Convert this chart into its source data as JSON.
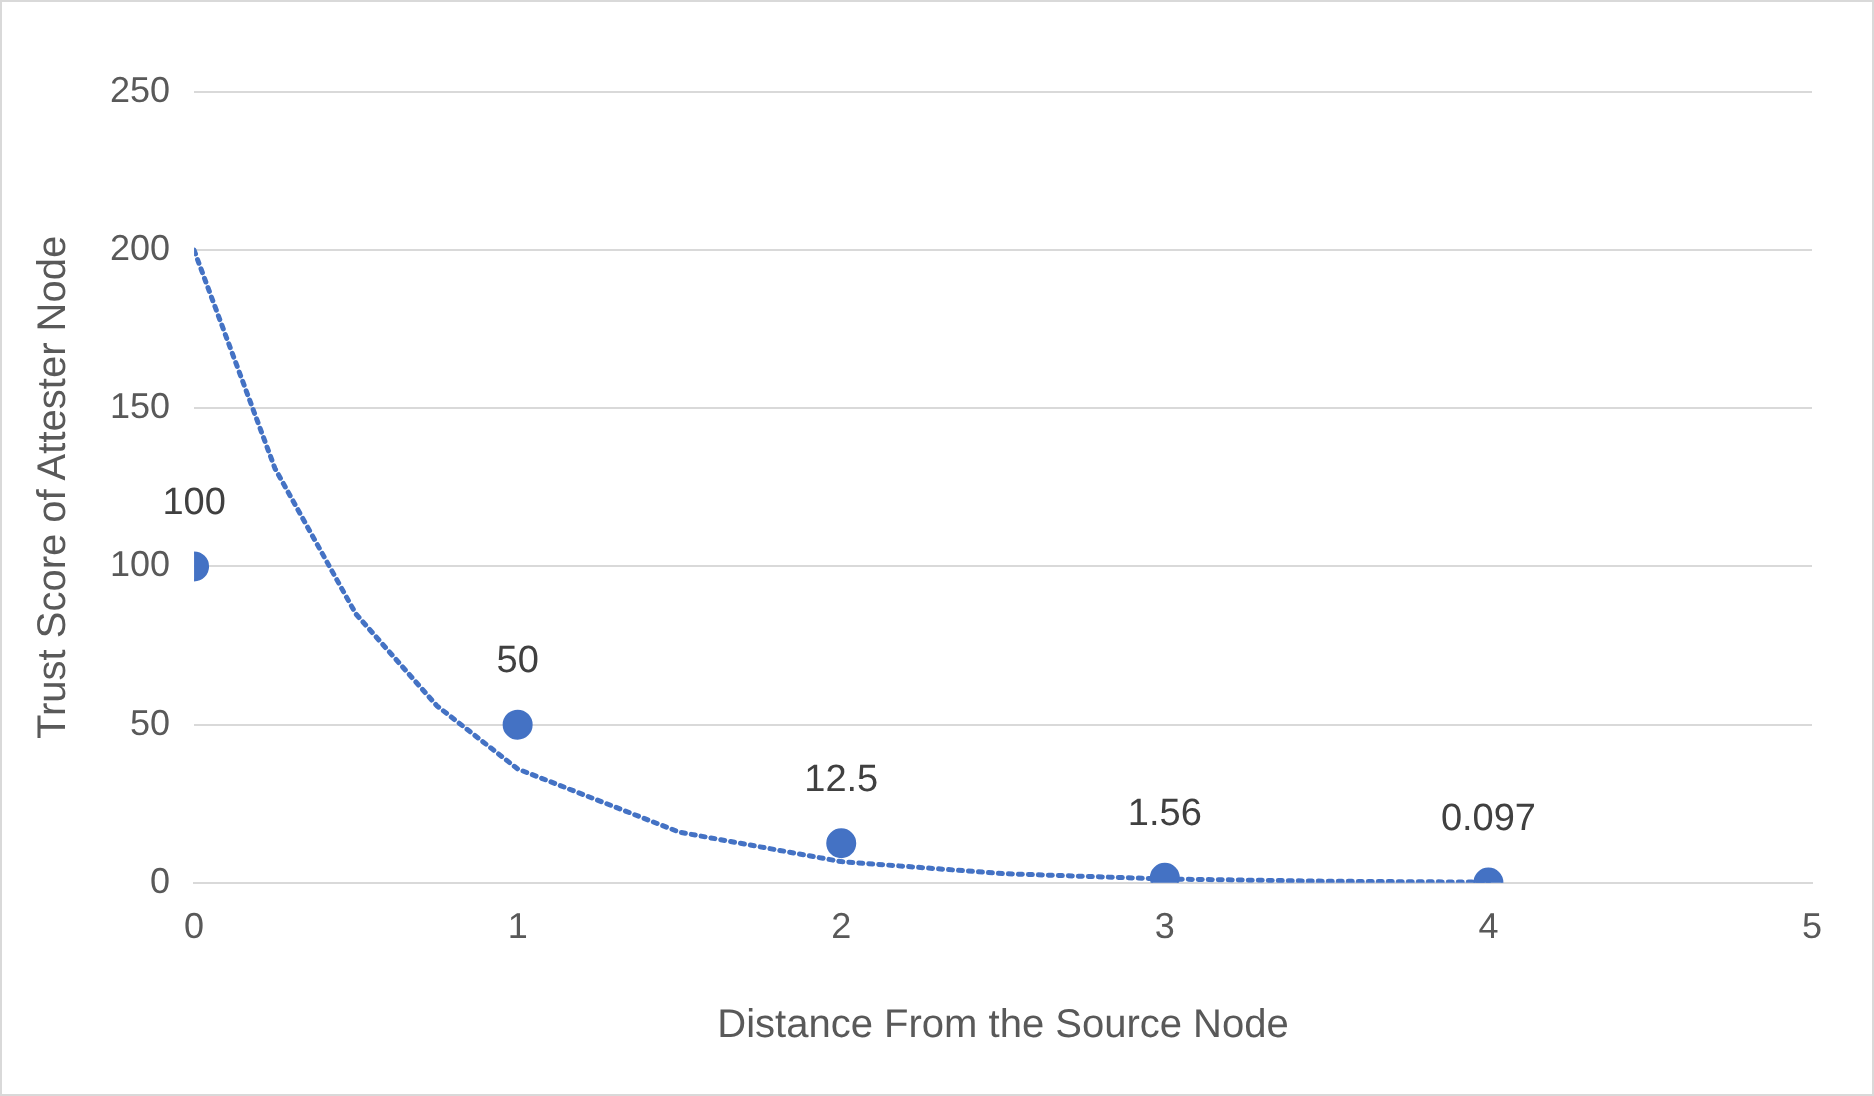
{
  "chart_data": {
    "type": "scatter",
    "xlabel": "Distance From the Source Node",
    "ylabel": "Trust Score of Attester Node",
    "xlim": [
      0,
      5
    ],
    "xticks": [
      0,
      1,
      2,
      3,
      4,
      5
    ],
    "ylim": [
      0,
      250
    ],
    "yticks": [
      0,
      50,
      100,
      150,
      200,
      250
    ],
    "grid": "y",
    "legend": false,
    "marker": "circle",
    "series": [
      {
        "color": "#4472c4",
        "x": [
          0,
          1,
          2,
          3,
          4
        ],
        "values": [
          100,
          50,
          12.5,
          1.56,
          0.097
        ],
        "value_labels": [
          "100",
          "50",
          "12.5",
          "1.56",
          "0.097"
        ]
      },
      {
        "type": "line",
        "color": "#4472c4",
        "line_style": "dotted",
        "marker": "none",
        "x": [
          0,
          0.25,
          0.5,
          0.75,
          1,
          1.5,
          2,
          2.5,
          3,
          3.5,
          4
        ],
        "values": [
          200,
          131,
          85,
          56,
          36,
          16,
          6.7,
          2.9,
          1.2,
          0.5,
          0.2
        ]
      }
    ]
  }
}
